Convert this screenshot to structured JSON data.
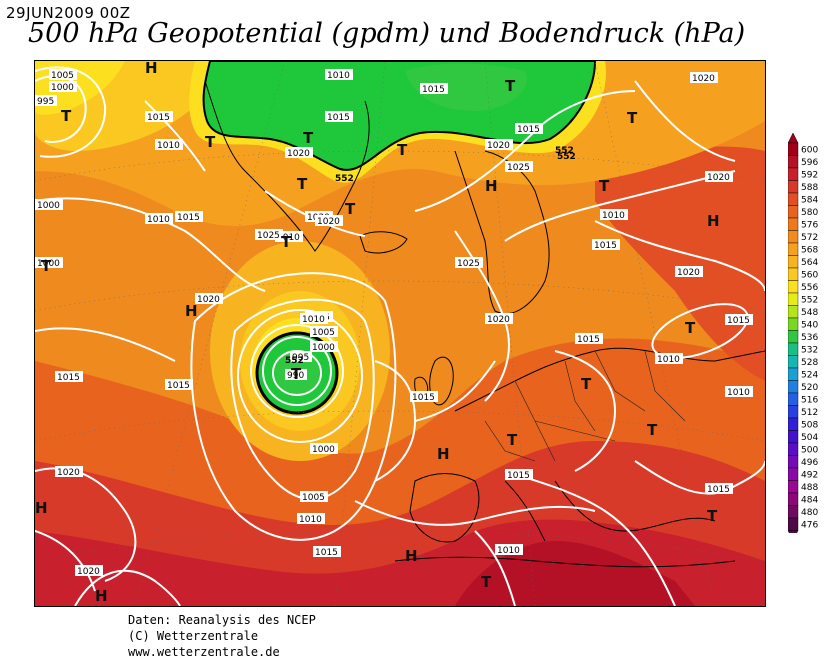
{
  "header": {
    "date": "29JUN2009 00Z",
    "title": "500 hPa Geopotential (gpdm) und Bodendruck (hPa)"
  },
  "credits": {
    "line1": "Daten: Reanalysis des NCEP",
    "line2": "(C) Wetterzentrale",
    "line3": "www.wetterzentrale.de"
  },
  "legend": {
    "values": [
      600,
      596,
      592,
      588,
      584,
      580,
      576,
      572,
      568,
      564,
      560,
      556,
      552,
      548,
      540,
      536,
      532,
      528,
      524,
      520,
      516,
      512,
      508,
      504,
      500,
      496,
      492,
      488,
      484,
      480,
      476
    ],
    "colors": [
      "#a0001a",
      "#b41026",
      "#c8202c",
      "#d83a2a",
      "#e24f24",
      "#e8641e",
      "#ee781c",
      "#f38c1e",
      "#f6a020",
      "#f8b420",
      "#fac820",
      "#fce020",
      "#e6ec1a",
      "#b4e41a",
      "#78d820",
      "#30c840",
      "#18c086",
      "#14b8b0",
      "#1aa0d2",
      "#2080e2",
      "#2460e2",
      "#2840de",
      "#3020d6",
      "#4412cc",
      "#5a0ec6",
      "#740ab8",
      "#8a08a8",
      "#9a0894",
      "#8c0878",
      "#700a60",
      "#500846"
    ]
  },
  "map": {
    "isobar_labels": [
      "1005",
      "1000",
      "995",
      "1015",
      "1010",
      "1015",
      "1010",
      "1000",
      "1010",
      "1020",
      "1020",
      "1025",
      "1020",
      "1015",
      "1010",
      "1015",
      "1020",
      "1025",
      "1010",
      "1015",
      "1020",
      "1020",
      "1000",
      "1020",
      "1015",
      "1010",
      "1005",
      "1000",
      "995",
      "990",
      "1015",
      "1015",
      "1015",
      "1010",
      "1015",
      "1020",
      "1000",
      "1005",
      "1010",
      "1015",
      "1015",
      "1010",
      "1020",
      "1020",
      "1010",
      "1015",
      "1015",
      "1025",
      "1020",
      "1015"
    ],
    "geopotential_labels": [
      "552",
      "552",
      "552",
      "552"
    ],
    "pressure_centers": {
      "highs": [
        "H",
        "H",
        "H",
        "H",
        "H",
        "H",
        "H",
        "H"
      ],
      "lows": [
        "T",
        "T",
        "T",
        "T",
        "T",
        "T",
        "T",
        "T",
        "T",
        "T",
        "T",
        "T",
        "T",
        "T",
        "T",
        "T",
        "T"
      ]
    }
  }
}
